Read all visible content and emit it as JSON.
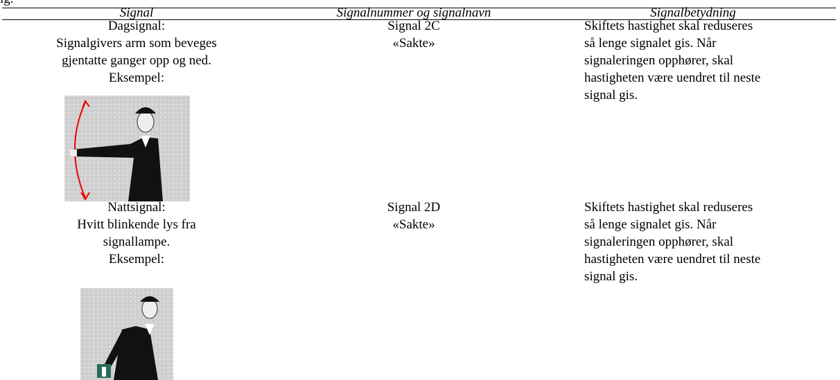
{
  "header": {
    "caption": "ig."
  },
  "table": {
    "headers": [
      "Signal",
      "Signalnummer og signalnavn",
      "Signalbetydning"
    ],
    "rows": [
      {
        "signal": [
          "Dagsignal:",
          "Signalgivers arm som beveges",
          "gjentatte ganger opp og ned.",
          "Eksempel:"
        ],
        "number": [
          "Signal 2C",
          "«Sakte»"
        ],
        "meaning": [
          "Skiftets hastighet skal reduseres",
          "så lenge signalet gis. Når",
          "signaleringen opphører, skal",
          "hastigheten være uendret til neste",
          "signal gis."
        ]
      },
      {
        "signal": [
          "Nattsignal:",
          "Hvitt blinkende lys fra",
          "signallampe.",
          "Eksempel:"
        ],
        "number": [
          "Signal 2D",
          "«Sakte»"
        ],
        "meaning": [
          "Skiftets hastighet skal reduseres",
          "så lenge signalet gis. Når",
          "signaleringen opphører, skal",
          "hastigheten være uendret til neste",
          "signal gis."
        ]
      }
    ]
  }
}
